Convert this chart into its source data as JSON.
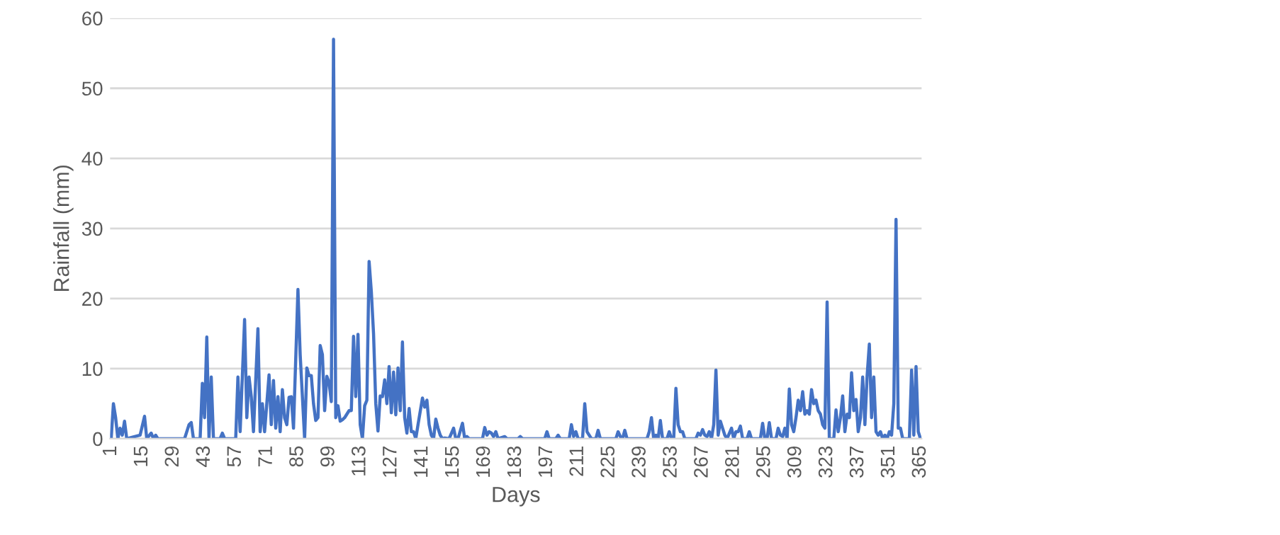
{
  "chart_data": {
    "type": "line",
    "xlabel": "Days",
    "ylabel": "Rainfall (mm)",
    "xlim": [
      0.5,
      365.5
    ],
    "xticks": [
      1,
      15,
      29,
      43,
      57,
      71,
      85,
      99,
      113,
      127,
      141,
      155,
      169,
      183,
      197,
      211,
      225,
      239,
      253,
      267,
      281,
      295,
      309,
      323,
      337,
      351,
      365
    ],
    "ylim": [
      0,
      60
    ],
    "yticks": [
      0,
      10,
      20,
      30,
      40,
      50,
      60
    ],
    "grid": "y",
    "series": [
      {
        "color": "#4472c4",
        "x": [
          1,
          2,
          3,
          4,
          5,
          6,
          7,
          8,
          14,
          16,
          17,
          19,
          20,
          21,
          22,
          34,
          36,
          37,
          38,
          41,
          42,
          43,
          44,
          45,
          46,
          47,
          50,
          51,
          52,
          57,
          58,
          59,
          61,
          62,
          63,
          64,
          65,
          67,
          68,
          69,
          70,
          72,
          73,
          74,
          75,
          76,
          77,
          78,
          79,
          80,
          81,
          82,
          83,
          85,
          86,
          88,
          89,
          90,
          91,
          92,
          93,
          94,
          95,
          96,
          97,
          98,
          99,
          100,
          101,
          102,
          103,
          104,
          105,
          106,
          107,
          108,
          109,
          110,
          111,
          112,
          113,
          114,
          115,
          116,
          117,
          118,
          119,
          120,
          121,
          122,
          123,
          124,
          125,
          126,
          127,
          128,
          129,
          130,
          131,
          132,
          133,
          134,
          135,
          136,
          137,
          138,
          139,
          141,
          142,
          143,
          144,
          145,
          146,
          147,
          148,
          149,
          150,
          151,
          153,
          155,
          156,
          157,
          159,
          160,
          161,
          162,
          168,
          169,
          170,
          171,
          172,
          173,
          174,
          175,
          178,
          179,
          184,
          185,
          186,
          196,
          197,
          198,
          201,
          202,
          203,
          207,
          208,
          209,
          210,
          211,
          213,
          214,
          215,
          216,
          217,
          219,
          220,
          221,
          228,
          229,
          230,
          231,
          232,
          233,
          242,
          243,
          244,
          245,
          246,
          247,
          248,
          249,
          251,
          252,
          253,
          254,
          255,
          256,
          257,
          258,
          259,
          264,
          265,
          266,
          267,
          268,
          269,
          270,
          271,
          272,
          273,
          274,
          275,
          276,
          277,
          278,
          280,
          281,
          282,
          283,
          284,
          285,
          287,
          288,
          289,
          293,
          294,
          295,
          296,
          297,
          298,
          300,
          301,
          302,
          303,
          304,
          305,
          306,
          307,
          308,
          309,
          310,
          311,
          312,
          313,
          314,
          315,
          316,
          317,
          318,
          319,
          320,
          321,
          322,
          323,
          324,
          326,
          327,
          328,
          329,
          330,
          331,
          332,
          333,
          334,
          335,
          336,
          337,
          338,
          339,
          340,
          341,
          342,
          343,
          344,
          345,
          346,
          347,
          348,
          349,
          350,
          351,
          352,
          353,
          354,
          355,
          356,
          357,
          360,
          361,
          362,
          363,
          364,
          365
        ],
        "values": [
          0,
          5,
          3,
          0,
          1.5,
          0.5,
          2.5,
          0,
          0.5,
          3.2,
          0,
          0.8,
          0,
          0.5,
          0,
          0,
          2,
          2.3,
          0,
          0,
          7.9,
          3,
          14.5,
          0,
          8.8,
          0,
          0,
          0.8,
          0,
          0,
          8.8,
          1,
          17,
          3,
          8.8,
          6,
          1,
          15.7,
          1,
          5,
          1,
          9.1,
          2,
          8.3,
          1.5,
          6,
          1,
          7,
          3,
          2,
          5.9,
          6,
          1.5,
          21.3,
          12,
          0,
          10.1,
          9,
          9,
          5,
          2.6,
          3,
          13.3,
          12,
          4,
          8.9,
          8,
          5.3,
          57,
          3,
          4.7,
          2.5,
          2.7,
          3,
          3.5,
          4,
          4,
          14.6,
          6,
          14.9,
          2,
          0,
          4.7,
          5.5,
          25.3,
          21,
          15,
          5,
          1.1,
          6.1,
          6,
          8.4,
          5,
          10.3,
          3.7,
          9.5,
          3.4,
          10.1,
          4,
          13.8,
          3,
          0.8,
          4.3,
          1,
          1,
          0,
          2,
          5.8,
          4.5,
          5.5,
          2,
          0.5,
          0,
          2.8,
          1.5,
          0.5,
          0,
          0.1,
          0,
          1.5,
          0,
          0,
          2.2,
          0,
          0.3,
          0,
          0,
          1.6,
          0.5,
          1,
          0.8,
          0.3,
          1,
          0,
          0.3,
          0,
          0,
          0.3,
          0,
          0,
          1,
          0,
          0,
          0.5,
          0,
          0,
          2,
          0.3,
          1,
          0,
          0,
          5,
          1,
          0.5,
          0,
          0,
          1.2,
          0,
          0,
          1,
          0.3,
          0,
          1.2,
          0,
          0,
          1,
          3,
          0,
          0.5,
          0,
          2.6,
          0,
          0,
          1,
          0,
          0,
          7.2,
          2,
          1,
          1,
          0,
          0,
          0.8,
          0.5,
          1.3,
          0.5,
          0.3,
          1,
          0,
          2,
          9.8,
          0.5,
          2.5,
          1.5,
          0.5,
          0,
          1.5,
          0,
          1,
          1,
          1.8,
          0,
          0,
          1,
          0,
          0,
          2.2,
          0,
          0,
          2.3,
          0,
          0,
          1.5,
          0.5,
          0.3,
          1.5,
          0,
          7.1,
          2,
          1,
          3,
          5.5,
          4,
          6.7,
          3.5,
          4,
          3.5,
          7,
          5,
          5.5,
          4,
          3.5,
          2,
          1.5,
          19.5,
          0,
          0,
          4.1,
          1,
          3,
          6.1,
          1,
          3.5,
          3,
          9.4,
          4,
          5.6,
          1,
          3,
          8.8,
          2,
          9,
          13.5,
          3,
          8.8,
          1,
          0.5,
          1,
          0,
          0.5,
          0,
          1,
          0.5,
          5,
          31.3,
          1.5,
          1.5,
          0,
          0,
          9.8,
          0.5,
          10.3,
          1,
          0
        ]
      }
    ]
  }
}
